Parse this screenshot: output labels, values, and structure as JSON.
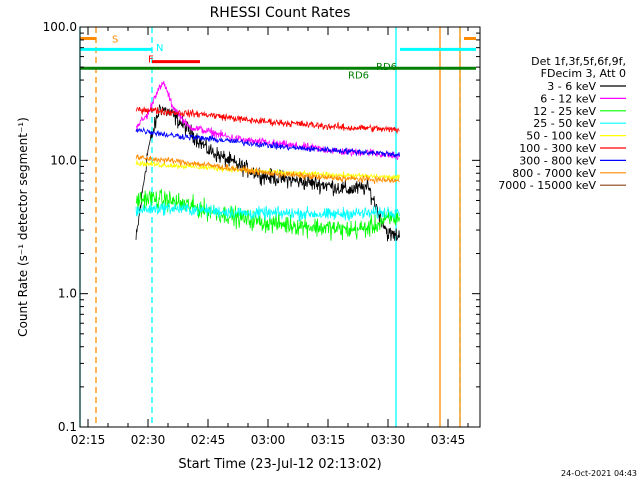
{
  "chart_data": {
    "type": "line",
    "title": "RHESSI Count Rates",
    "xlabel": "Start Time (23-Jul-12 02:13:02)",
    "ylabel": "Count Rate (s⁻¹ detector segment⁻¹)",
    "y_scale": "log",
    "ylim": [
      0.1,
      100
    ],
    "xlim": [
      "02:13",
      "03:53"
    ],
    "y_ticks": [
      {
        "value": 0.1,
        "label": "0.1"
      },
      {
        "value": 1,
        "label": "1.0"
      },
      {
        "value": 10,
        "label": "10.0"
      },
      {
        "value": 100,
        "label": "100.0"
      }
    ],
    "x_ticks": [
      {
        "value": "02:15",
        "label": "02:15"
      },
      {
        "value": "02:30",
        "label": "02:30"
      },
      {
        "value": "02:45",
        "label": "02:45"
      },
      {
        "value": "03:00",
        "label": "03:00"
      },
      {
        "value": "03:15",
        "label": "03:15"
      },
      {
        "value": "03:30",
        "label": "03:30"
      },
      {
        "value": "03:45",
        "label": "03:45"
      }
    ],
    "legend": {
      "placement": "right",
      "header": [
        "Det 1f,3f,5f,6f,9f,",
        "FDecim 3, Att 0"
      ]
    },
    "series": [
      {
        "name": "3 - 6 keV",
        "color": "#000000",
        "segments": [
          {
            "x": [
              "02:27",
              "02:30",
              "02:33",
              "02:36",
              "02:40",
              "02:45",
              "02:50",
              "02:55",
              "03:00",
              "03:05",
              "03:10",
              "03:15",
              "03:20",
              "03:25",
              "03:30",
              "03:33"
            ],
            "y": [
              2.5,
              12,
              25,
              22,
              17,
              12,
              10,
              8.5,
              7.5,
              7.2,
              6.8,
              6.5,
              6,
              6.3,
              2.8,
              2.7
            ]
          }
        ]
      },
      {
        "name": "6 - 12 keV",
        "color": "#ff00ff",
        "segments": [
          {
            "x": [
              "02:27",
              "02:30",
              "02:32",
              "02:34",
              "02:36",
              "02:40",
              "02:45",
              "02:50",
              "02:55",
              "03:00",
              "03:05",
              "03:10",
              "03:15",
              "03:20",
              "03:25",
              "03:30",
              "03:33"
            ],
            "y": [
              18,
              22,
              32,
              38,
              26,
              18,
              16.5,
              15,
              14,
              13.5,
              13,
              12.5,
              12,
              11.5,
              11.5,
              11,
              10.5
            ]
          }
        ]
      },
      {
        "name": "12 - 25 keV",
        "color": "#00ff00",
        "segments": [
          {
            "x": [
              "02:27",
              "02:30",
              "02:35",
              "02:40",
              "02:45",
              "02:50",
              "02:55",
              "03:00",
              "03:05",
              "03:10",
              "03:15",
              "03:20",
              "03:25",
              "03:30",
              "03:33"
            ],
            "y": [
              5,
              5.2,
              5,
              4.6,
              4.2,
              3.9,
              3.6,
              3.4,
              3.3,
              3.2,
              3.1,
              3,
              3.1,
              3.6,
              3.7
            ]
          }
        ]
      },
      {
        "name": "25 - 50 keV",
        "color": "#00ffff",
        "segments": [
          {
            "x": [
              "02:27",
              "02:30",
              "02:35",
              "02:40",
              "02:45",
              "02:50",
              "02:55",
              "03:00",
              "03:05",
              "03:10",
              "03:15",
              "03:20",
              "03:25",
              "03:30",
              "03:33"
            ],
            "y": [
              4.2,
              4.3,
              4.4,
              4.3,
              4.2,
              4.1,
              4,
              4,
              4,
              4,
              3.9,
              4,
              4,
              4.1,
              4.2
            ]
          }
        ]
      },
      {
        "name": "50 - 100 keV",
        "color": "#ffff00",
        "segments": [
          {
            "x": [
              "02:27",
              "02:30",
              "02:35",
              "02:40",
              "02:45",
              "02:50",
              "02:55",
              "03:00",
              "03:05",
              "03:10",
              "03:15",
              "03:20",
              "03:25",
              "03:30",
              "03:33"
            ],
            "y": [
              9.5,
              9.4,
              9.2,
              9,
              8.8,
              8.6,
              8.4,
              8.2,
              8,
              7.9,
              7.8,
              7.7,
              7.6,
              7.5,
              7.4
            ]
          }
        ]
      },
      {
        "name": "100 - 300 keV",
        "color": "#ff0000",
        "segments": [
          {
            "x": [
              "02:27",
              "02:30",
              "02:35",
              "02:40",
              "02:45",
              "02:50",
              "02:55",
              "03:00",
              "03:05",
              "03:10",
              "03:15",
              "03:20",
              "03:25",
              "03:30",
              "03:33"
            ],
            "y": [
              24,
              24,
              23,
              22.5,
              22,
              21,
              20,
              19.5,
              19,
              18.5,
              18,
              17.5,
              17.5,
              17,
              17
            ]
          }
        ]
      },
      {
        "name": "300 - 800 keV",
        "color": "#0000ff",
        "segments": [
          {
            "x": [
              "02:27",
              "02:30",
              "02:35",
              "02:40",
              "02:45",
              "02:50",
              "02:55",
              "03:00",
              "03:05",
              "03:10",
              "03:15",
              "03:20",
              "03:25",
              "03:30",
              "03:33"
            ],
            "y": [
              17,
              16.5,
              15.5,
              15,
              14.5,
              14,
              13.5,
              13,
              12.5,
              12.2,
              12,
              11.7,
              11.5,
              11.2,
              11
            ]
          }
        ]
      },
      {
        "name": "800 - 7000 keV",
        "color": "#ff8c00",
        "segments": [
          {
            "x": [
              "02:27",
              "02:30",
              "02:35",
              "02:40",
              "02:45",
              "02:50",
              "02:55",
              "03:00",
              "03:05",
              "03:10",
              "03:15",
              "03:20",
              "03:25",
              "03:30",
              "03:33"
            ],
            "y": [
              10.5,
              10.3,
              10,
              9.6,
              9.2,
              8.8,
              8.4,
              8,
              7.8,
              7.6,
              7.4,
              7.3,
              7.2,
              7.1,
              7
            ]
          }
        ]
      },
      {
        "name": "7000 - 15000 keV",
        "color": "#8b4513",
        "segments": []
      }
    ],
    "annotations": [
      {
        "text": "S",
        "color": "#ff8c00",
        "x": "02:21",
        "y": 82
      },
      {
        "text": "N",
        "color": "#00ffff",
        "x": "02:32",
        "y": 71
      },
      {
        "text": "F",
        "color": "#ff0000",
        "x": "02:30",
        "y": 58
      },
      {
        "text": "RD6",
        "color": "#008000",
        "x": "03:20",
        "y": 44
      },
      {
        "text": "RD6",
        "color": "#008000",
        "x": "03:27",
        "y": 51
      }
    ],
    "state_bars": [
      {
        "label": "S",
        "color": "#ff8c00",
        "y": 82,
        "intervals": [
          [
            "02:13",
            "02:17"
          ],
          [
            "03:49",
            "03:52"
          ]
        ]
      },
      {
        "label": "N",
        "color": "#00ffff",
        "y": 68,
        "intervals": [
          [
            "02:13",
            "02:31"
          ],
          [
            "03:33",
            "03:52"
          ]
        ]
      },
      {
        "label": "F",
        "color": "#ff0000",
        "y": 55,
        "intervals": [
          [
            "02:31",
            "02:43"
          ]
        ]
      },
      {
        "label": "RD6",
        "color": "#008000",
        "y": 49,
        "intervals": [
          [
            "02:13",
            "03:52"
          ]
        ]
      }
    ],
    "vertical_lines": [
      {
        "x": "02:13",
        "color": "#00ffff",
        "dashed": false
      },
      {
        "x": "02:17",
        "color": "#ff8c00",
        "dashed": true
      },
      {
        "x": "02:31",
        "color": "#00ffff",
        "dashed": true
      },
      {
        "x": "03:32",
        "color": "#00ffff",
        "dashed": false
      },
      {
        "x": "03:43",
        "color": "#ff8c00",
        "dashed": false
      },
      {
        "x": "03:48",
        "color": "#00ffff",
        "dashed": true
      },
      {
        "x": "03:48",
        "color": "#ff8c00",
        "dashed": false
      }
    ],
    "footer_date": "24-Oct-2021 04:43"
  }
}
